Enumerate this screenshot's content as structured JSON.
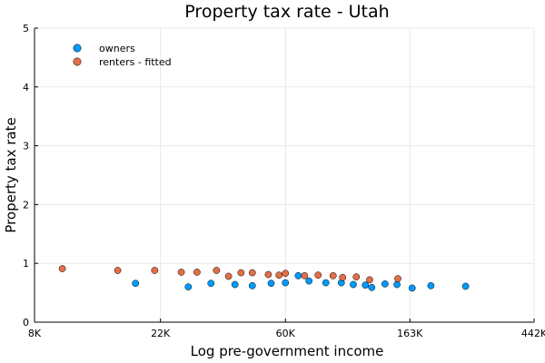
{
  "chart_data": {
    "type": "scatter",
    "title": "Property tax rate - Utah",
    "xlabel": "Log pre-government income",
    "ylabel": "Property tax rate",
    "xscale": "log",
    "xlim": [
      8000,
      442000
    ],
    "ylim": [
      0,
      5
    ],
    "xticks": [
      {
        "value": 8000,
        "label": "8K"
      },
      {
        "value": 22000,
        "label": "22K"
      },
      {
        "value": 60000,
        "label": "60K"
      },
      {
        "value": 163000,
        "label": "163K"
      },
      {
        "value": 442000,
        "label": "442K"
      }
    ],
    "yticks": [
      0,
      1,
      2,
      3,
      4,
      5
    ],
    "grid": true,
    "legend_position": "top-left",
    "series": [
      {
        "name": "owners",
        "color": "#009AFA",
        "x": [
          18000,
          27500,
          33000,
          40000,
          46000,
          53500,
          60000,
          66500,
          72500,
          83000,
          94000,
          103500,
          114000,
          120000,
          133500,
          147000,
          166000,
          193000,
          255000
        ],
        "y": [
          0.66,
          0.6,
          0.66,
          0.64,
          0.62,
          0.66,
          0.67,
          0.79,
          0.7,
          0.67,
          0.67,
          0.64,
          0.63,
          0.59,
          0.65,
          0.64,
          0.58,
          0.62,
          0.61
        ]
      },
      {
        "name": "renters - fitted",
        "color": "#E26F46",
        "x": [
          10000,
          15600,
          21000,
          26000,
          29500,
          34500,
          38000,
          42000,
          46000,
          52300,
          57000,
          60000,
          70000,
          78000,
          88000,
          95000,
          106000,
          118000,
          148000
        ],
        "y": [
          0.91,
          0.88,
          0.88,
          0.85,
          0.85,
          0.88,
          0.78,
          0.84,
          0.84,
          0.81,
          0.8,
          0.83,
          0.79,
          0.8,
          0.79,
          0.76,
          0.77,
          0.72,
          0.74
        ]
      }
    ]
  }
}
